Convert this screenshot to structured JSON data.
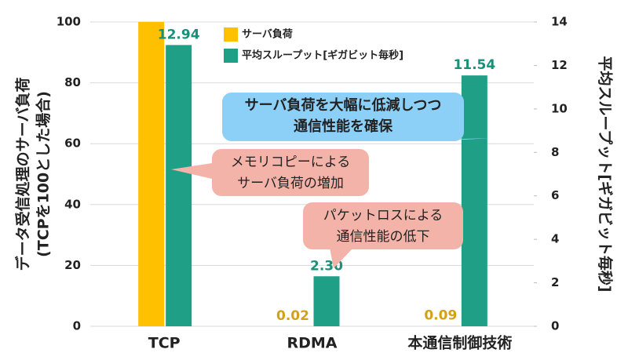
{
  "chart_data": {
    "type": "bar",
    "categories": [
      "TCP",
      "RDMA",
      "本通信制御技術"
    ],
    "series": [
      {
        "name": "サーバ負荷",
        "color": "#ffc000",
        "label_color": "#d4a017",
        "values": [
          100,
          0.02,
          0.09
        ],
        "value_labels": [
          null,
          "0.02",
          "0.09"
        ]
      },
      {
        "name": "平均スループット[ギガビット毎秒]",
        "color": "#1fa086",
        "label_color": "#1a9079",
        "axis": "y2",
        "values": [
          12.94,
          2.3,
          11.54
        ],
        "value_labels": [
          "12.94",
          "2.30",
          "11.54"
        ]
      }
    ],
    "ylabel": [
      "データ受信処理のサーバ負荷",
      "(TCPを100とした場合)"
    ],
    "y2label": "平均スループット[ギガビット毎秒]",
    "ylim": [
      0,
      100
    ],
    "yticks": [
      0,
      20,
      40,
      60,
      80,
      100
    ],
    "y2lim": [
      0,
      14
    ],
    "y2ticks": [
      0,
      2,
      4,
      6,
      8,
      10,
      12,
      14
    ],
    "grid": true,
    "annotations": [
      {
        "lines": [
          "サーバ負荷を大幅に低減しつつ",
          "通信性能を確保"
        ],
        "color": "#8ccff7"
      },
      {
        "lines": [
          "メモリコピーによる",
          "サーバ負荷の増加"
        ],
        "color": "#f3b3a8"
      },
      {
        "lines": [
          "パケットロスによる",
          "通信性能の低下"
        ],
        "color": "#f3b3a8"
      }
    ]
  }
}
